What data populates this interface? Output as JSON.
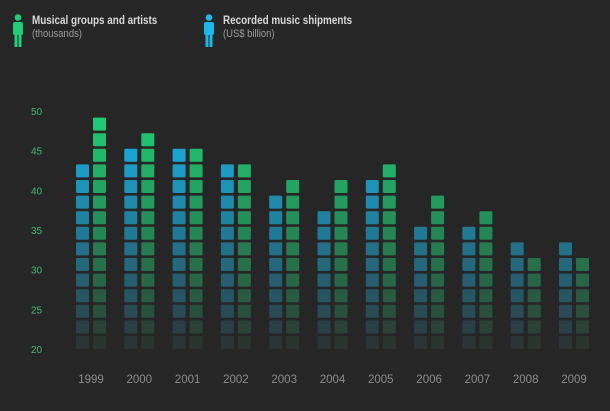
{
  "colors": {
    "background": "#262626",
    "groups": "#1fcf76",
    "shipments": "#18b8ea",
    "axis_text": "#3dbd6b",
    "year_text": "#8c8c8c"
  },
  "legend": [
    {
      "title": "Musical groups and artists",
      "sub": "(thousands)",
      "icon": "person-icon-green"
    },
    {
      "title": "Recorded music shipments",
      "sub": "(US$ billion)",
      "icon": "person-icon-blue"
    }
  ],
  "chart_data": {
    "type": "bar",
    "categories": [
      "1999",
      "2000",
      "2001",
      "2002",
      "2003",
      "2004",
      "2005",
      "2006",
      "2007",
      "2008",
      "2009"
    ],
    "series": [
      {
        "name": "Recorded music shipments",
        "values": [
          44,
          46,
          46,
          44,
          40,
          38,
          42,
          36,
          36,
          34,
          34
        ]
      },
      {
        "name": "Musical groups and artists",
        "values": [
          50,
          48,
          46,
          44,
          42,
          42,
          44,
          40,
          38,
          32,
          32
        ]
      }
    ],
    "yticks": [
      20,
      25,
      30,
      35,
      40,
      45,
      50
    ],
    "ylim": [
      20,
      50
    ],
    "grid": false,
    "legend_position": "top-left"
  }
}
